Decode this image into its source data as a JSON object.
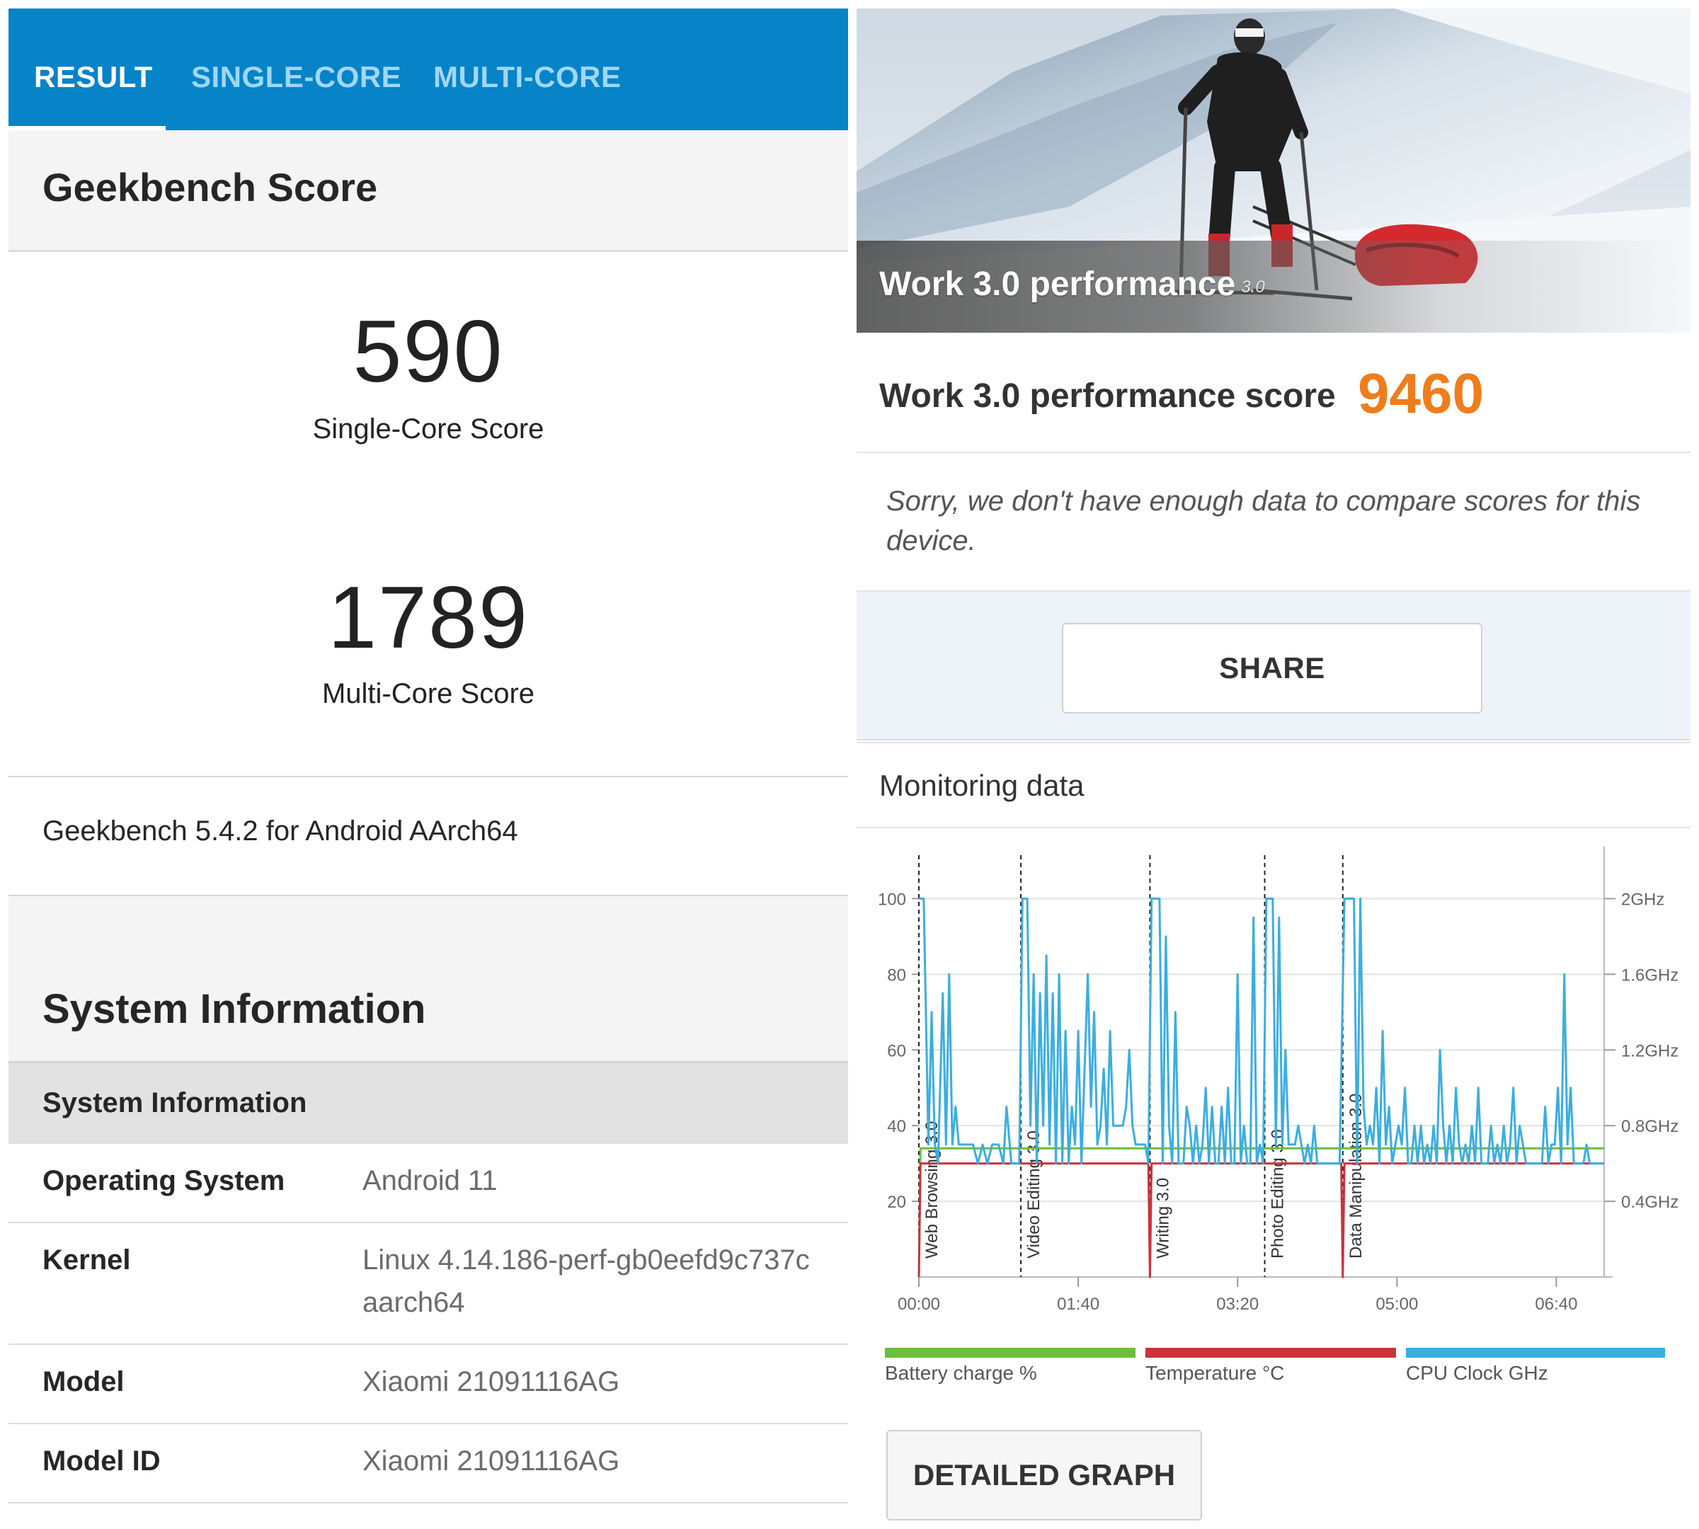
{
  "geekbench": {
    "tabs": [
      "RESULT",
      "SINGLE-CORE",
      "MULTI-CORE"
    ],
    "score_title": "Geekbench Score",
    "single_core": {
      "value": "590",
      "label": "Single-Core Score"
    },
    "multi_core": {
      "value": "1789",
      "label": "Multi-Core Score"
    },
    "version": "Geekbench 5.4.2 for Android AArch64",
    "system_info_title": "System Information",
    "system_info_subtitle": "System Information",
    "rows": [
      {
        "key": "Operating System",
        "value": "Android 11"
      },
      {
        "key": "Kernel",
        "value": "Linux 4.14.186-perf-gb0eefd9c737c aarch64"
      },
      {
        "key": "Model",
        "value": "Xiaomi 21091116AG"
      },
      {
        "key": "Model ID",
        "value": "Xiaomi 21091116AG"
      }
    ]
  },
  "pcmark": {
    "hero_title": "Work 3.0 performance",
    "hero_version": "3.0",
    "score_label": "Work 3.0 performance score",
    "score_value": "9460",
    "notice": "Sorry, we don't have enough data to compare scores for this device.",
    "share_label": "SHARE",
    "monitoring_title": "Monitoring data",
    "detailed_graph_label": "DETAILED GRAPH",
    "legend": [
      {
        "label": "Battery charge %",
        "color": "#6cbf3a"
      },
      {
        "label": "Temperature °C",
        "color": "#c9343b"
      },
      {
        "label": "CPU Clock GHz",
        "color": "#3aaee0"
      }
    ]
  },
  "chart_data": {
    "type": "line",
    "x_ticks": [
      "00:00",
      "01:40",
      "03:20",
      "05:00",
      "06:40"
    ],
    "x_range_seconds": [
      0,
      430
    ],
    "y_left": {
      "ticks": [
        20,
        40,
        60,
        80,
        100
      ],
      "range": [
        0,
        110
      ]
    },
    "y_right": {
      "ticks": [
        "0.4GHz",
        "0.8GHz",
        "1.2GHz",
        "1.6GHz",
        "2GHz"
      ],
      "range_ghz": [
        0,
        2.2
      ]
    },
    "workload_markers": [
      {
        "label": "Web Browsing 3.0",
        "t": 0
      },
      {
        "label": "Video Editing 3.0",
        "t": 64
      },
      {
        "label": "Writing 3.0",
        "t": 145
      },
      {
        "label": "Photo Editing 3.0",
        "t": 217
      },
      {
        "label": "Data Manipulation 3.0",
        "t": 266
      }
    ],
    "series": [
      {
        "name": "Battery charge %",
        "color": "#6cbf3a",
        "points": [
          [
            0,
            0
          ],
          [
            1,
            34
          ],
          [
            430,
            34
          ]
        ]
      },
      {
        "name": "Temperature °C",
        "color": "#c9343b",
        "points": [
          [
            0,
            0
          ],
          [
            1,
            30
          ],
          [
            144,
            30
          ],
          [
            145,
            0
          ],
          [
            146,
            30
          ],
          [
            265,
            30
          ],
          [
            266,
            0
          ],
          [
            267,
            30
          ],
          [
            430,
            30
          ]
        ]
      },
      {
        "name": "CPU Clock GHz",
        "color": "#3aaee0",
        "points_ghz": [
          [
            0,
            2.0
          ],
          [
            3,
            2.0
          ],
          [
            6,
            0.7
          ],
          [
            8,
            1.4
          ],
          [
            10,
            0.7
          ],
          [
            12,
            0.6
          ],
          [
            15,
            1.5
          ],
          [
            17,
            0.7
          ],
          [
            19,
            1.6
          ],
          [
            21,
            0.7
          ],
          [
            23,
            0.9
          ],
          [
            25,
            0.7
          ],
          [
            28,
            0.7
          ],
          [
            31,
            0.7
          ],
          [
            34,
            0.7
          ],
          [
            37,
            0.6
          ],
          [
            40,
            0.7
          ],
          [
            43,
            0.6
          ],
          [
            46,
            0.7
          ],
          [
            50,
            0.7
          ],
          [
            53,
            0.6
          ],
          [
            55,
            0.9
          ],
          [
            58,
            0.6
          ],
          [
            61,
            0.6
          ],
          [
            63,
            0.6
          ],
          [
            65,
            2.0
          ],
          [
            68,
            2.0
          ],
          [
            70,
            0.8
          ],
          [
            72,
            1.6
          ],
          [
            74,
            0.6
          ],
          [
            76,
            1.5
          ],
          [
            78,
            0.8
          ],
          [
            80,
            1.7
          ],
          [
            82,
            0.7
          ],
          [
            84,
            1.5
          ],
          [
            86,
            0.6
          ],
          [
            88,
            1.6
          ],
          [
            90,
            0.6
          ],
          [
            92,
            1.3
          ],
          [
            94,
            0.6
          ],
          [
            96,
            0.9
          ],
          [
            98,
            0.7
          ],
          [
            100,
            1.3
          ],
          [
            102,
            0.6
          ],
          [
            104,
            1.1
          ],
          [
            106,
            1.6
          ],
          [
            108,
            0.9
          ],
          [
            110,
            1.4
          ],
          [
            112,
            0.7
          ],
          [
            114,
            0.8
          ],
          [
            116,
            1.1
          ],
          [
            118,
            0.7
          ],
          [
            120,
            1.3
          ],
          [
            122,
            0.8
          ],
          [
            124,
            0.8
          ],
          [
            126,
            0.8
          ],
          [
            128,
            0.8
          ],
          [
            130,
            0.9
          ],
          [
            132,
            1.2
          ],
          [
            134,
            0.8
          ],
          [
            136,
            0.7
          ],
          [
            138,
            0.7
          ],
          [
            140,
            0.7
          ],
          [
            142,
            0.7
          ],
          [
            144,
            0.6
          ],
          [
            146,
            2.0
          ],
          [
            151,
            2.0
          ],
          [
            153,
            0.6
          ],
          [
            155,
            1.8
          ],
          [
            157,
            0.8
          ],
          [
            159,
            0.6
          ],
          [
            161,
            1.4
          ],
          [
            163,
            0.6
          ],
          [
            166,
            0.6
          ],
          [
            168,
            0.9
          ],
          [
            170,
            0.8
          ],
          [
            172,
            0.6
          ],
          [
            174,
            0.8
          ],
          [
            176,
            0.6
          ],
          [
            178,
            0.7
          ],
          [
            180,
            1.0
          ],
          [
            182,
            0.6
          ],
          [
            184,
            0.9
          ],
          [
            186,
            0.6
          ],
          [
            188,
            0.6
          ],
          [
            190,
            0.9
          ],
          [
            192,
            0.6
          ],
          [
            194,
            1.0
          ],
          [
            196,
            0.6
          ],
          [
            198,
            0.6
          ],
          [
            200,
            1.6
          ],
          [
            202,
            0.6
          ],
          [
            204,
            0.8
          ],
          [
            206,
            0.6
          ],
          [
            208,
            0.6
          ],
          [
            210,
            1.9
          ],
          [
            212,
            0.6
          ],
          [
            214,
            0.7
          ],
          [
            216,
            0.6
          ],
          [
            218,
            2.0
          ],
          [
            222,
            2.0
          ],
          [
            224,
            0.7
          ],
          [
            226,
            1.9
          ],
          [
            228,
            0.7
          ],
          [
            230,
            1.2
          ],
          [
            232,
            0.7
          ],
          [
            234,
            0.7
          ],
          [
            236,
            0.7
          ],
          [
            238,
            0.8
          ],
          [
            240,
            0.7
          ],
          [
            242,
            0.6
          ],
          [
            244,
            0.7
          ],
          [
            246,
            0.6
          ],
          [
            248,
            0.8
          ],
          [
            250,
            0.6
          ],
          [
            252,
            0.6
          ],
          [
            254,
            0.6
          ],
          [
            256,
            0.6
          ],
          [
            258,
            0.6
          ],
          [
            260,
            0.6
          ],
          [
            262,
            0.6
          ],
          [
            264,
            0.6
          ],
          [
            267,
            2.0
          ],
          [
            273,
            2.0
          ],
          [
            275,
            0.6
          ],
          [
            277,
            2.0
          ],
          [
            279,
            0.9
          ],
          [
            281,
            0.7
          ],
          [
            283,
            0.8
          ],
          [
            285,
            0.7
          ],
          [
            287,
            1.0
          ],
          [
            289,
            0.6
          ],
          [
            291,
            1.3
          ],
          [
            293,
            0.7
          ],
          [
            295,
            0.9
          ],
          [
            297,
            0.6
          ],
          [
            299,
            0.7
          ],
          [
            301,
            0.8
          ],
          [
            303,
            0.7
          ],
          [
            305,
            1.0
          ],
          [
            307,
            0.6
          ],
          [
            309,
            0.6
          ],
          [
            311,
            0.8
          ],
          [
            313,
            0.6
          ],
          [
            315,
            0.8
          ],
          [
            317,
            0.6
          ],
          [
            319,
            0.7
          ],
          [
            321,
            0.6
          ],
          [
            323,
            0.8
          ],
          [
            325,
            0.6
          ],
          [
            327,
            1.2
          ],
          [
            329,
            0.8
          ],
          [
            331,
            0.6
          ],
          [
            333,
            0.8
          ],
          [
            335,
            0.6
          ],
          [
            337,
            1.0
          ],
          [
            339,
            0.7
          ],
          [
            341,
            0.6
          ],
          [
            343,
            0.7
          ],
          [
            345,
            0.6
          ],
          [
            347,
            0.8
          ],
          [
            349,
            0.6
          ],
          [
            351,
            1.0
          ],
          [
            353,
            0.6
          ],
          [
            355,
            0.6
          ],
          [
            357,
            0.6
          ],
          [
            359,
            0.8
          ],
          [
            361,
            0.6
          ],
          [
            363,
            0.7
          ],
          [
            365,
            0.6
          ],
          [
            367,
            0.8
          ],
          [
            369,
            0.6
          ],
          [
            371,
            0.7
          ],
          [
            373,
            1.0
          ],
          [
            375,
            0.6
          ],
          [
            377,
            0.8
          ],
          [
            379,
            0.7
          ],
          [
            381,
            0.6
          ],
          [
            383,
            0.6
          ],
          [
            385,
            0.6
          ],
          [
            387,
            0.6
          ],
          [
            389,
            0.6
          ],
          [
            391,
            0.6
          ],
          [
            393,
            0.9
          ],
          [
            395,
            0.6
          ],
          [
            397,
            0.7
          ],
          [
            399,
            0.7
          ],
          [
            401,
            1.0
          ],
          [
            403,
            0.6
          ],
          [
            405,
            1.6
          ],
          [
            407,
            0.7
          ],
          [
            409,
            1.0
          ],
          [
            411,
            0.6
          ],
          [
            413,
            0.6
          ],
          [
            415,
            0.6
          ],
          [
            417,
            0.6
          ],
          [
            419,
            0.7
          ],
          [
            421,
            0.6
          ],
          [
            423,
            0.6
          ],
          [
            425,
            0.6
          ],
          [
            427,
            0.6
          ],
          [
            430,
            0.6
          ]
        ]
      }
    ]
  }
}
